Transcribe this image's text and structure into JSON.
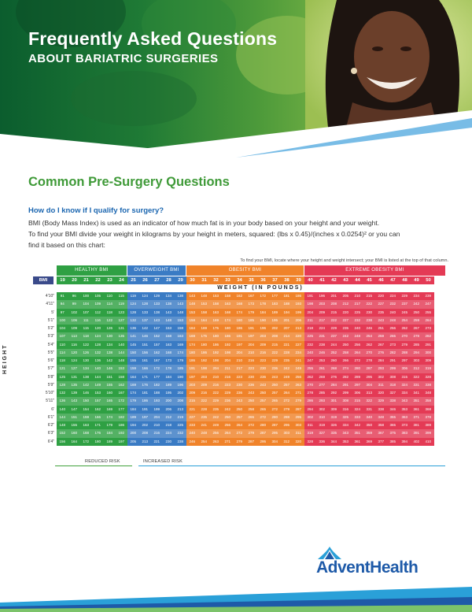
{
  "hero": {
    "title": "Frequently Asked Questions",
    "subtitle": "ABOUT BARIATRIC SURGERIES"
  },
  "section_title": "Common Pre-Surgery Questions",
  "faq": {
    "question": "How do I know if I qualify for surgery?",
    "p1": "BMI (Body Mass Index) is used as an indicator of how much fat is in your body based on your height and your weight.",
    "p2": "To find your BMI divide your weight in kilograms by your height in meters, squared: (lbs x 0.45)/(inches x 0.0254)² or you can",
    "p3": "find it based on this chart:"
  },
  "chart_note": "To find your BMI, locate where your height and weight intersect; your BMI is listed at the top of that column.",
  "colors": {
    "healthy": "#2fa043",
    "overweight": "#3a7bc4",
    "obesity": "#f0832a",
    "extreme": "#e43a55",
    "brand": "#1e5aa8",
    "green": "#3f9a38"
  },
  "bmi_chart": {
    "categories": [
      {
        "label": "HEALTHY BMI",
        "start": 0,
        "span": 6
      },
      {
        "label": "OVERWEIGHT BMI",
        "start": 6,
        "span": 5
      },
      {
        "label": "OBESITY BMI",
        "start": 11,
        "span": 10
      },
      {
        "label": "EXTREME OBESITY BMI",
        "start": 21,
        "span": 12
      }
    ],
    "bmi_label": "BMI",
    "bmi_values": [
      19,
      20,
      21,
      22,
      23,
      24,
      25,
      26,
      27,
      28,
      29,
      30,
      31,
      32,
      33,
      34,
      35,
      36,
      37,
      38,
      39,
      40,
      41,
      42,
      43,
      44,
      45,
      46,
      47,
      48,
      49,
      50
    ],
    "weight_label": "WEIGHT (IN POUNDS)",
    "height_label": "HEIGHT",
    "rows": [
      {
        "h": "4'10\"",
        "w": [
          91,
          96,
          100,
          105,
          110,
          115,
          119,
          124,
          129,
          134,
          138,
          143,
          148,
          153,
          158,
          162,
          167,
          172,
          177,
          181,
          186,
          191,
          196,
          201,
          205,
          210,
          215,
          220,
          224,
          229,
          234,
          239
        ]
      },
      {
        "h": "4'11\"",
        "w": [
          94,
          99,
          104,
          109,
          114,
          119,
          124,
          128,
          133,
          138,
          143,
          148,
          153,
          158,
          163,
          168,
          173,
          178,
          183,
          188,
          193,
          198,
          203,
          208,
          212,
          217,
          222,
          227,
          232,
          237,
          242,
          247
        ]
      },
      {
        "h": "5'",
        "w": [
          97,
          102,
          107,
          112,
          118,
          123,
          128,
          133,
          138,
          143,
          148,
          153,
          158,
          163,
          168,
          174,
          179,
          184,
          189,
          194,
          199,
          204,
          209,
          215,
          220,
          225,
          230,
          235,
          240,
          245,
          250,
          255
        ]
      },
      {
        "h": "5'1\"",
        "w": [
          100,
          106,
          111,
          116,
          122,
          127,
          132,
          137,
          143,
          148,
          153,
          158,
          164,
          169,
          174,
          180,
          185,
          190,
          195,
          201,
          206,
          211,
          217,
          222,
          227,
          232,
          238,
          243,
          248,
          254,
          259,
          264
        ]
      },
      {
        "h": "5'2\"",
        "w": [
          104,
          109,
          115,
          120,
          126,
          131,
          136,
          142,
          147,
          153,
          158,
          164,
          169,
          175,
          180,
          186,
          191,
          196,
          202,
          207,
          213,
          218,
          224,
          229,
          235,
          240,
          246,
          251,
          256,
          262,
          267,
          273
        ]
      },
      {
        "h": "5'3\"",
        "w": [
          107,
          113,
          118,
          124,
          130,
          135,
          141,
          146,
          152,
          158,
          163,
          169,
          175,
          180,
          186,
          191,
          197,
          203,
          208,
          214,
          220,
          225,
          231,
          237,
          242,
          248,
          254,
          259,
          265,
          270,
          278,
          282
        ]
      },
      {
        "h": "5'4\"",
        "w": [
          110,
          116,
          122,
          128,
          134,
          140,
          145,
          151,
          157,
          163,
          169,
          174,
          180,
          186,
          192,
          197,
          204,
          209,
          215,
          221,
          227,
          232,
          238,
          244,
          250,
          256,
          262,
          267,
          273,
          279,
          285,
          291
        ]
      },
      {
        "h": "5'5\"",
        "w": [
          114,
          120,
          126,
          132,
          138,
          144,
          150,
          156,
          162,
          168,
          174,
          180,
          186,
          192,
          198,
          204,
          210,
          216,
          222,
          228,
          234,
          240,
          246,
          252,
          258,
          264,
          270,
          276,
          282,
          288,
          294,
          300
        ]
      },
      {
        "h": "5'6\"",
        "w": [
          118,
          124,
          130,
          136,
          142,
          148,
          155,
          161,
          167,
          173,
          179,
          186,
          192,
          198,
          204,
          210,
          216,
          223,
          229,
          235,
          241,
          247,
          253,
          260,
          266,
          272,
          278,
          284,
          291,
          297,
          303,
          309
        ]
      },
      {
        "h": "5'7\"",
        "w": [
          121,
          127,
          134,
          140,
          146,
          153,
          159,
          166,
          172,
          178,
          185,
          191,
          198,
          204,
          211,
          217,
          223,
          230,
          236,
          242,
          249,
          255,
          261,
          268,
          274,
          280,
          287,
          293,
          299,
          306,
          312,
          319
        ]
      },
      {
        "h": "5'8\"",
        "w": [
          125,
          131,
          138,
          144,
          151,
          158,
          164,
          171,
          177,
          184,
          190,
          197,
          203,
          210,
          216,
          223,
          230,
          236,
          243,
          249,
          256,
          262,
          269,
          276,
          282,
          289,
          295,
          302,
          308,
          315,
          322,
          328
        ]
      },
      {
        "h": "5'9\"",
        "w": [
          128,
          135,
          142,
          149,
          155,
          162,
          169,
          176,
          182,
          189,
          196,
          203,
          209,
          216,
          223,
          230,
          236,
          243,
          250,
          257,
          263,
          270,
          277,
          284,
          291,
          297,
          304,
          311,
          318,
          324,
          331,
          338
        ]
      },
      {
        "h": "5'10\"",
        "w": [
          132,
          139,
          146,
          153,
          160,
          167,
          174,
          181,
          188,
          195,
          202,
          209,
          216,
          222,
          229,
          236,
          243,
          250,
          257,
          264,
          271,
          278,
          285,
          292,
          299,
          306,
          313,
          320,
          327,
          334,
          341,
          348
        ]
      },
      {
        "h": "5'11\"",
        "w": [
          136,
          143,
          150,
          157,
          165,
          172,
          179,
          186,
          193,
          200,
          208,
          215,
          222,
          229,
          236,
          243,
          250,
          257,
          265,
          272,
          279,
          286,
          293,
          301,
          308,
          315,
          322,
          329,
          338,
          343,
          351,
          358
        ]
      },
      {
        "h": "6'",
        "w": [
          140,
          147,
          154,
          162,
          169,
          177,
          184,
          191,
          199,
          206,
          213,
          221,
          228,
          235,
          242,
          250,
          258,
          265,
          272,
          279,
          287,
          294,
          302,
          309,
          316,
          324,
          331,
          338,
          346,
          353,
          361,
          368
        ]
      },
      {
        "h": "6'1\"",
        "w": [
          144,
          151,
          159,
          166,
          174,
          182,
          189,
          197,
          204,
          212,
          219,
          227,
          235,
          242,
          250,
          257,
          265,
          272,
          280,
          288,
          295,
          302,
          310,
          319,
          325,
          333,
          340,
          348,
          355,
          363,
          371,
          378
        ]
      },
      {
        "h": "6'2\"",
        "w": [
          148,
          155,
          163,
          171,
          179,
          186,
          194,
          202,
          210,
          218,
          225,
          233,
          241,
          249,
          256,
          264,
          272,
          280,
          287,
          295,
          303,
          311,
          319,
          326,
          334,
          342,
          350,
          358,
          365,
          373,
          381,
          389
        ]
      },
      {
        "h": "6'3\"",
        "w": [
          152,
          160,
          168,
          176,
          184,
          192,
          200,
          208,
          216,
          224,
          232,
          240,
          248,
          256,
          264,
          272,
          279,
          287,
          295,
          303,
          311,
          319,
          327,
          335,
          343,
          351,
          359,
          367,
          375,
          383,
          391,
          399
        ]
      },
      {
        "h": "6'4\"",
        "w": [
          156,
          164,
          172,
          180,
          189,
          197,
          205,
          213,
          221,
          230,
          238,
          246,
          254,
          263,
          271,
          279,
          287,
          295,
          304,
          312,
          320,
          328,
          336,
          344,
          353,
          361,
          369,
          377,
          385,
          394,
          402,
          410
        ]
      }
    ],
    "risk_reduced": "REDUCED RISK",
    "risk_increased": "INCREASED RISK"
  },
  "logo": {
    "name": "AdventHealth"
  }
}
